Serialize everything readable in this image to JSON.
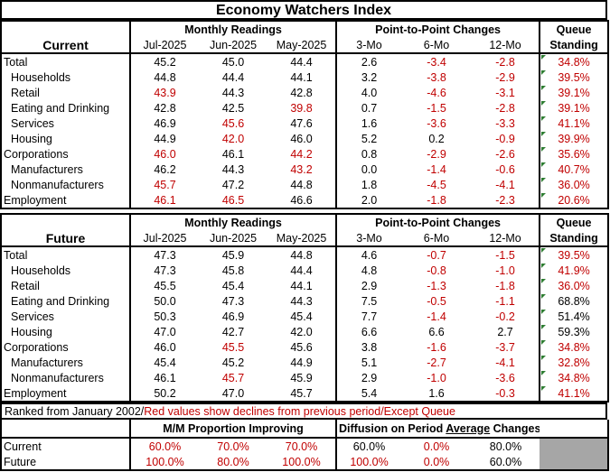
{
  "title": "Economy Watchers Index",
  "colors": {
    "decline": "#c00000",
    "marker": "#2e7d32",
    "shade": "#a6a6a6"
  },
  "current": {
    "section": "Current",
    "group_monthly": "Monthly Readings",
    "group_changes": "Point-to-Point Changes",
    "group_queue": [
      "Queue",
      "Standing"
    ],
    "months": [
      "Jul-2025",
      "Jun-2025",
      "May-2025"
    ],
    "periods": [
      "3-Mo",
      "6-Mo",
      "12-Mo"
    ],
    "rows": [
      {
        "label": "Total",
        "indent": false,
        "v": [
          "45.2",
          "45.0",
          "44.4"
        ],
        "vr": [
          0,
          0,
          0
        ],
        "c": [
          "2.6",
          "-3.4",
          "-2.8"
        ],
        "cr": [
          0,
          1,
          1
        ],
        "q": "34.8%",
        "qr": 1
      },
      {
        "label": "Households",
        "indent": true,
        "v": [
          "44.8",
          "44.4",
          "44.1"
        ],
        "vr": [
          0,
          0,
          0
        ],
        "c": [
          "3.2",
          "-3.8",
          "-2.9"
        ],
        "cr": [
          0,
          1,
          1
        ],
        "q": "39.5%",
        "qr": 1
      },
      {
        "label": "Retail",
        "indent": true,
        "v": [
          "43.9",
          "44.3",
          "42.8"
        ],
        "vr": [
          1,
          0,
          0
        ],
        "c": [
          "4.0",
          "-4.6",
          "-3.1"
        ],
        "cr": [
          0,
          1,
          1
        ],
        "q": "39.1%",
        "qr": 1
      },
      {
        "label": "Eating and Drinking",
        "indent": true,
        "v": [
          "42.8",
          "42.5",
          "39.8"
        ],
        "vr": [
          0,
          0,
          1
        ],
        "c": [
          "0.7",
          "-1.5",
          "-2.8"
        ],
        "cr": [
          0,
          1,
          1
        ],
        "q": "39.1%",
        "qr": 1
      },
      {
        "label": "Services",
        "indent": true,
        "v": [
          "46.9",
          "45.6",
          "47.6"
        ],
        "vr": [
          0,
          1,
          0
        ],
        "c": [
          "1.6",
          "-3.6",
          "-3.3"
        ],
        "cr": [
          0,
          1,
          1
        ],
        "q": "41.1%",
        "qr": 1
      },
      {
        "label": "Housing",
        "indent": true,
        "v": [
          "44.9",
          "42.0",
          "46.0"
        ],
        "vr": [
          0,
          1,
          0
        ],
        "c": [
          "5.2",
          "0.2",
          "-0.9"
        ],
        "cr": [
          0,
          0,
          1
        ],
        "q": "39.9%",
        "qr": 1
      },
      {
        "label": "Corporations",
        "indent": false,
        "v": [
          "46.0",
          "46.1",
          "44.2"
        ],
        "vr": [
          1,
          0,
          1
        ],
        "c": [
          "0.8",
          "-2.9",
          "-2.6"
        ],
        "cr": [
          0,
          1,
          1
        ],
        "q": "35.6%",
        "qr": 1
      },
      {
        "label": "Manufacturers",
        "indent": true,
        "v": [
          "46.2",
          "44.3",
          "43.2"
        ],
        "vr": [
          0,
          0,
          1
        ],
        "c": [
          "0.0",
          "-1.4",
          "-0.6"
        ],
        "cr": [
          0,
          1,
          1
        ],
        "q": "40.7%",
        "qr": 1
      },
      {
        "label": "Nonmanufacturers",
        "indent": true,
        "v": [
          "45.7",
          "47.2",
          "44.8"
        ],
        "vr": [
          1,
          0,
          0
        ],
        "c": [
          "1.8",
          "-4.5",
          "-4.1"
        ],
        "cr": [
          0,
          1,
          1
        ],
        "q": "36.0%",
        "qr": 1
      },
      {
        "label": "Employment",
        "indent": false,
        "v": [
          "46.1",
          "46.5",
          "46.6"
        ],
        "vr": [
          1,
          1,
          0
        ],
        "c": [
          "2.0",
          "-1.8",
          "-2.3"
        ],
        "cr": [
          0,
          1,
          1
        ],
        "q": "20.6%",
        "qr": 1
      }
    ]
  },
  "future": {
    "section": "Future",
    "group_monthly": "Monthly Readings",
    "group_changes": "Point-to-Point Changes",
    "group_queue": [
      "Queue",
      "Standing"
    ],
    "months": [
      "Jul-2025",
      "Jun-2025",
      "May-2025"
    ],
    "periods": [
      "3-Mo",
      "6-Mo",
      "12-Mo"
    ],
    "rows": [
      {
        "label": "Total",
        "indent": false,
        "v": [
          "47.3",
          "45.9",
          "44.8"
        ],
        "vr": [
          0,
          0,
          0
        ],
        "c": [
          "4.6",
          "-0.7",
          "-1.5"
        ],
        "cr": [
          0,
          1,
          1
        ],
        "q": "39.5%",
        "qr": 1
      },
      {
        "label": "Households",
        "indent": true,
        "v": [
          "47.3",
          "45.8",
          "44.4"
        ],
        "vr": [
          0,
          0,
          0
        ],
        "c": [
          "4.8",
          "-0.8",
          "-1.0"
        ],
        "cr": [
          0,
          1,
          1
        ],
        "q": "41.9%",
        "qr": 1
      },
      {
        "label": "Retail",
        "indent": true,
        "v": [
          "45.5",
          "45.4",
          "44.1"
        ],
        "vr": [
          0,
          0,
          0
        ],
        "c": [
          "2.9",
          "-1.3",
          "-1.8"
        ],
        "cr": [
          0,
          1,
          1
        ],
        "q": "36.0%",
        "qr": 1
      },
      {
        "label": "Eating and Drinking",
        "indent": true,
        "v": [
          "50.0",
          "47.3",
          "44.3"
        ],
        "vr": [
          0,
          0,
          0
        ],
        "c": [
          "7.5",
          "-0.5",
          "-1.1"
        ],
        "cr": [
          0,
          1,
          1
        ],
        "q": "68.8%",
        "qr": 0
      },
      {
        "label": "Services",
        "indent": true,
        "v": [
          "50.3",
          "46.9",
          "45.4"
        ],
        "vr": [
          0,
          0,
          0
        ],
        "c": [
          "7.7",
          "-1.4",
          "-0.2"
        ],
        "cr": [
          0,
          1,
          1
        ],
        "q": "51.4%",
        "qr": 0
      },
      {
        "label": "Housing",
        "indent": true,
        "v": [
          "47.0",
          "42.7",
          "42.0"
        ],
        "vr": [
          0,
          0,
          0
        ],
        "c": [
          "6.6",
          "6.6",
          "2.7"
        ],
        "cr": [
          0,
          0,
          0
        ],
        "q": "59.3%",
        "qr": 0
      },
      {
        "label": "Corporations",
        "indent": false,
        "v": [
          "46.0",
          "45.5",
          "45.6"
        ],
        "vr": [
          0,
          1,
          0
        ],
        "c": [
          "3.8",
          "-1.6",
          "-3.7"
        ],
        "cr": [
          0,
          1,
          1
        ],
        "q": "34.8%",
        "qr": 1
      },
      {
        "label": "Manufacturers",
        "indent": true,
        "v": [
          "45.4",
          "45.2",
          "44.9"
        ],
        "vr": [
          0,
          0,
          0
        ],
        "c": [
          "5.1",
          "-2.7",
          "-4.1"
        ],
        "cr": [
          0,
          1,
          1
        ],
        "q": "32.8%",
        "qr": 1
      },
      {
        "label": "Nonmanufacturers",
        "indent": true,
        "v": [
          "46.1",
          "45.7",
          "45.9"
        ],
        "vr": [
          0,
          1,
          0
        ],
        "c": [
          "2.9",
          "-1.0",
          "-3.6"
        ],
        "cr": [
          0,
          1,
          1
        ],
        "q": "34.8%",
        "qr": 1
      },
      {
        "label": "Employment",
        "indent": false,
        "v": [
          "50.2",
          "47.0",
          "45.7"
        ],
        "vr": [
          0,
          0,
          0
        ],
        "c": [
          "5.4",
          "1.6",
          "-0.3"
        ],
        "cr": [
          0,
          0,
          1
        ],
        "q": "41.1%",
        "qr": 1
      }
    ]
  },
  "note": {
    "part1": "Ranked from January 2002/",
    "part2": "Red values show declines from previous period/Except Queue"
  },
  "summary": {
    "left_title": "M/M Proportion Improving",
    "right_title_pre": "Diffusion on Period ",
    "right_title_u": "Average",
    "right_title_post": " Changes",
    "rows": [
      {
        "label": "Current",
        "mm": [
          "60.0%",
          "70.0%",
          "70.0%"
        ],
        "mmr": [
          1,
          1,
          1
        ],
        "d": [
          "60.0%",
          "0.0%",
          "80.0%"
        ],
        "dr": [
          0,
          1,
          0
        ]
      },
      {
        "label": "Future",
        "mm": [
          "100.0%",
          "80.0%",
          "100.0%"
        ],
        "mmr": [
          1,
          1,
          1
        ],
        "d": [
          "100.0%",
          "0.0%",
          "60.0%"
        ],
        "dr": [
          1,
          1,
          0
        ]
      }
    ]
  }
}
